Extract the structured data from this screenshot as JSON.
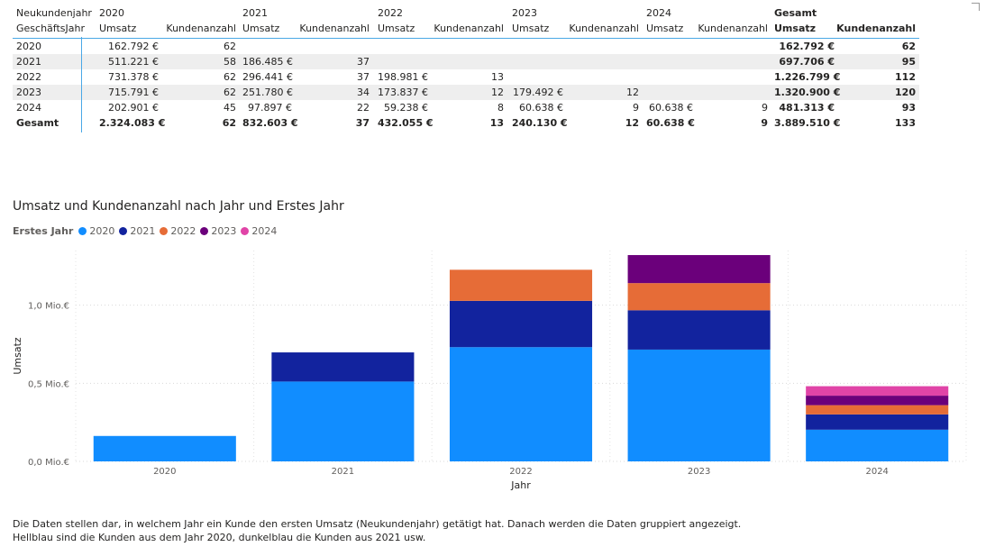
{
  "matrix": {
    "row_header_1": "Neukundenjahr",
    "row_header_2": "GeschäftsJahr",
    "col_groups": [
      "2020",
      "2021",
      "2022",
      "2023",
      "2024",
      "Gesamt"
    ],
    "measure_labels": [
      "Umsatz",
      "Kundenanzahl"
    ],
    "rows": [
      {
        "label": "2020",
        "cells": [
          "162.792 €",
          "62",
          "",
          "",
          "",
          "",
          "",
          "",
          "",
          "",
          "162.792 €",
          "62"
        ]
      },
      {
        "label": "2021",
        "cells": [
          "511.221 €",
          "58",
          "186.485 €",
          "37",
          "",
          "",
          "",
          "",
          "",
          "",
          "697.706 €",
          "95"
        ]
      },
      {
        "label": "2022",
        "cells": [
          "731.378 €",
          "62",
          "296.441 €",
          "37",
          "198.981 €",
          "13",
          "",
          "",
          "",
          "",
          "1.226.799 €",
          "112"
        ]
      },
      {
        "label": "2023",
        "cells": [
          "715.791 €",
          "62",
          "251.780 €",
          "34",
          "173.837 €",
          "12",
          "179.492 €",
          "12",
          "",
          "",
          "1.320.900 €",
          "120"
        ]
      },
      {
        "label": "2024",
        "cells": [
          "202.901 €",
          "45",
          "97.897 €",
          "22",
          "59.238 €",
          "8",
          "60.638 €",
          "9",
          "60.638 €",
          "9",
          "481.313 €",
          "93"
        ]
      }
    ],
    "total": {
      "label": "Gesamt",
      "cells": [
        "2.324.083 €",
        "62",
        "832.603 €",
        "37",
        "432.055 €",
        "13",
        "240.130 €",
        "12",
        "60.638 €",
        "9",
        "3.889.510 €",
        "133"
      ]
    }
  },
  "chart_data": {
    "type": "bar",
    "stacked": true,
    "title": "Umsatz und Kundenanzahl nach Jahr und Erstes Jahr",
    "legend_title": "Erstes Jahr",
    "xlabel": "Jahr",
    "ylabel": "Umsatz",
    "categories": [
      "2020",
      "2021",
      "2022",
      "2023",
      "2024"
    ],
    "ylim": [
      0,
      1.35
    ],
    "yticks": [
      0,
      0.5,
      1.0
    ],
    "ytick_labels": [
      "0,0 Mio.€",
      "0,5 Mio.€",
      "1,0 Mio.€"
    ],
    "series": [
      {
        "name": "2020",
        "color": "#118DFF",
        "values": [
          0.162792,
          0.511221,
          0.731378,
          0.715791,
          0.202901
        ]
      },
      {
        "name": "2021",
        "color": "#12239E",
        "values": [
          0,
          0.186485,
          0.296441,
          0.25178,
          0.097897
        ]
      },
      {
        "name": "2022",
        "color": "#E66C37",
        "values": [
          0,
          0,
          0.198981,
          0.173837,
          0.059238
        ]
      },
      {
        "name": "2023",
        "color": "#6B007B",
        "values": [
          0,
          0,
          0,
          0.179492,
          0.060638
        ]
      },
      {
        "name": "2024",
        "color": "#E044A7",
        "values": [
          0,
          0,
          0,
          0,
          0.060638
        ]
      }
    ],
    "grid": true
  },
  "note": {
    "line1": "Die Daten stellen dar, in welchem Jahr ein Kunde den ersten Umsatz (Neukundenjahr) getätigt hat. Danach werden die Daten gruppiert angezeigt.",
    "line2": "Hellblau sind die Kunden aus dem Jahr 2020, dunkelblau die Kunden aus 2021 usw."
  }
}
